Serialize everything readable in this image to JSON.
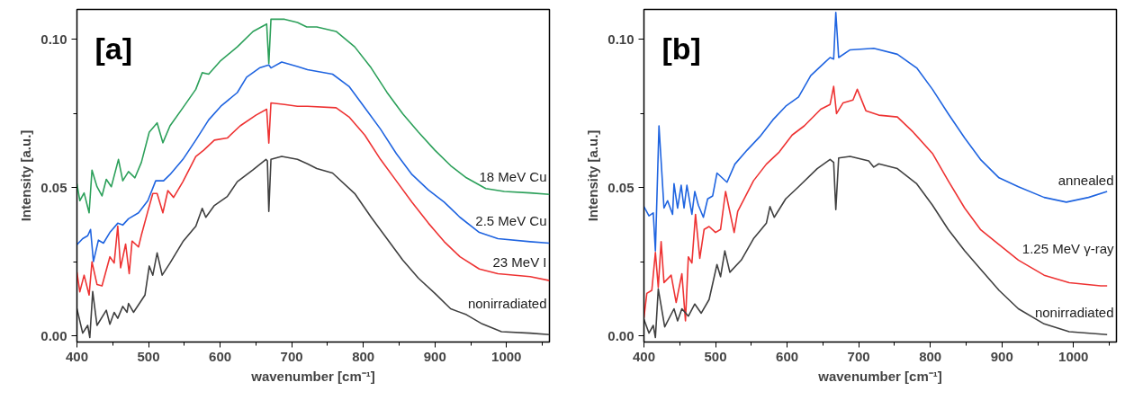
{
  "chart_data": [
    {
      "type": "line",
      "title": "[a]",
      "xlabel": "wavenumber [cm⁻¹]",
      "ylabel": "Intensity [a.u.]",
      "xlim": [
        400,
        1060
      ],
      "ylim": [
        -0.002,
        0.11
      ],
      "xticks": [
        400,
        {
          "value": 450,
          "label": null
        },
        500,
        {
          "value": 550,
          "label": null
        },
        600,
        {
          "value": 650,
          "label": null
        },
        700,
        {
          "value": 750,
          "label": null
        },
        800,
        {
          "value": 850,
          "label": null
        },
        900,
        {
          "value": 950,
          "label": null
        },
        1000,
        {
          "value": 1050,
          "label": null
        }
      ],
      "yticks": [
        {
          "value": 0,
          "label": "0.00"
        },
        {
          "value": 0.025,
          "label": null
        },
        {
          "value": 0.05,
          "label": "0.05"
        },
        {
          "value": 0.075,
          "label": null
        },
        {
          "value": 0.1,
          "label": "0.10"
        }
      ],
      "grid": false,
      "legend": false,
      "marker": "none",
      "line_style": "solid",
      "series": [
        {
          "name": "18 MeV Cu",
          "color": "#2ca05a",
          "x": [
            400,
            404,
            410,
            417,
            421,
            428,
            435,
            441,
            448,
            458,
            464,
            472,
            481,
            490,
            501,
            512,
            520,
            530,
            548,
            566,
            575,
            584,
            601,
            624,
            646,
            665,
            668,
            671,
            690,
            708,
            721,
            735,
            762,
            788,
            811,
            833,
            855,
            877,
            900,
            922,
            944,
            971,
            997,
            1033,
            1060
          ],
          "values": [
            0.0513,
            0.0456,
            0.0482,
            0.0415,
            0.0559,
            0.0503,
            0.0472,
            0.0528,
            0.0503,
            0.0595,
            0.0523,
            0.0554,
            0.0533,
            0.0585,
            0.0687,
            0.0718,
            0.0651,
            0.0708,
            0.0769,
            0.0831,
            0.0887,
            0.0882,
            0.0928,
            0.0974,
            0.1026,
            0.1051,
            0.0918,
            0.1067,
            0.1067,
            0.1056,
            0.1041,
            0.1041,
            0.1026,
            0.0974,
            0.0903,
            0.0821,
            0.0749,
            0.0687,
            0.0626,
            0.0574,
            0.0533,
            0.0497,
            0.0487,
            0.0482,
            0.0477
          ]
        },
        {
          "name": "2.5 MeV Cu",
          "color": "#1f64e0",
          "x": [
            400,
            408,
            415,
            419,
            423,
            430,
            437,
            446,
            457,
            464,
            472,
            486,
            499,
            510,
            521,
            530,
            548,
            566,
            584,
            601,
            624,
            637,
            655,
            668,
            671,
            686,
            708,
            722,
            757,
            780,
            802,
            824,
            846,
            868,
            891,
            913,
            935,
            962,
            988,
            1033,
            1060
          ],
          "values": [
            0.0308,
            0.0328,
            0.0338,
            0.0359,
            0.0251,
            0.0323,
            0.0313,
            0.0349,
            0.038,
            0.0374,
            0.0395,
            0.0415,
            0.0456,
            0.0523,
            0.0523,
            0.0544,
            0.0595,
            0.066,
            0.0728,
            0.0774,
            0.082,
            0.0872,
            0.0903,
            0.0913,
            0.0903,
            0.0923,
            0.0908,
            0.0897,
            0.0882,
            0.0841,
            0.0769,
            0.0697,
            0.0615,
            0.0544,
            0.0492,
            0.0451,
            0.04,
            0.0349,
            0.0328,
            0.0318,
            0.0313
          ]
        },
        {
          "name": "23 MeV I",
          "color": "#ee3333",
          "x": [
            400,
            404,
            410,
            417,
            421,
            428,
            435,
            446,
            452,
            457,
            461,
            468,
            473,
            477,
            486,
            490,
            499,
            506,
            512,
            520,
            527,
            535,
            548,
            566,
            577,
            592,
            610,
            628,
            650,
            665,
            668,
            671,
            690,
            708,
            722,
            762,
            780,
            802,
            824,
            846,
            868,
            891,
            913,
            935,
            962,
            988,
            1033,
            1060
          ],
          "values": [
            0.0215,
            0.0149,
            0.0205,
            0.0138,
            0.025,
            0.0174,
            0.0169,
            0.0267,
            0.0246,
            0.037,
            0.023,
            0.031,
            0.021,
            0.032,
            0.03,
            0.034,
            0.042,
            0.048,
            0.048,
            0.0415,
            0.049,
            0.0467,
            0.052,
            0.0605,
            0.0626,
            0.066,
            0.0667,
            0.0708,
            0.0744,
            0.0764,
            0.065,
            0.0785,
            0.078,
            0.0774,
            0.0774,
            0.0769,
            0.0738,
            0.0677,
            0.0595,
            0.0523,
            0.0451,
            0.038,
            0.0318,
            0.0267,
            0.0226,
            0.021,
            0.02,
            0.0187
          ]
        },
        {
          "name": "nonirradiated",
          "color": "#404040",
          "x": [
            400,
            408,
            415,
            418,
            422,
            428,
            441,
            446,
            452,
            457,
            464,
            470,
            472,
            479,
            495,
            501,
            506,
            512,
            519,
            530,
            548,
            566,
            575,
            580,
            592,
            610,
            624,
            646,
            664,
            666,
            668,
            671,
            686,
            708,
            722,
            735,
            757,
            788,
            811,
            833,
            855,
            877,
            900,
            922,
            944,
            966,
            993,
            1033,
            1060
          ],
          "values": [
            0.0092,
            0.001,
            0.0036,
            -0.0005,
            0.015,
            0.0036,
            0.0087,
            0.004,
            0.008,
            0.006,
            0.01,
            0.008,
            0.011,
            0.008,
            0.0138,
            0.0236,
            0.0205,
            0.028,
            0.0205,
            0.0246,
            0.0318,
            0.037,
            0.043,
            0.04,
            0.044,
            0.047,
            0.052,
            0.056,
            0.0595,
            0.059,
            0.042,
            0.0595,
            0.0605,
            0.0595,
            0.058,
            0.0564,
            0.0549,
            0.048,
            0.04,
            0.0328,
            0.0256,
            0.0195,
            0.0144,
            0.0092,
            0.0072,
            0.0041,
            0.0015,
            0.001,
            0.0005
          ]
        }
      ]
    },
    {
      "type": "line",
      "title": "[b]",
      "xlabel": "wavenumber [cm⁻¹]",
      "ylabel": "Intensity [a.u.]",
      "xlim": [
        400,
        1060
      ],
      "ylim": [
        -0.002,
        0.11
      ],
      "xticks": [
        400,
        {
          "value": 450,
          "label": null
        },
        500,
        {
          "value": 550,
          "label": null
        },
        600,
        {
          "value": 650,
          "label": null
        },
        700,
        {
          "value": 750,
          "label": null
        },
        800,
        {
          "value": 850,
          "label": null
        },
        900,
        {
          "value": 950,
          "label": null
        },
        1000,
        {
          "value": 1050,
          "label": null
        }
      ],
      "yticks": [
        {
          "value": 0,
          "label": "0.00"
        },
        {
          "value": 0.025,
          "label": null
        },
        {
          "value": 0.05,
          "label": "0.05"
        },
        {
          "value": 0.075,
          "label": null
        },
        {
          "value": 0.1,
          "label": "0.10"
        }
      ],
      "grid": false,
      "legend": false,
      "marker": "none",
      "line_style": "solid",
      "series": [
        {
          "name": "annealed",
          "color": "#1f64e0",
          "x": [
            400,
            407,
            413,
            416,
            421,
            428,
            433,
            440,
            442,
            447,
            452,
            456,
            460,
            467,
            471,
            476,
            483,
            489,
            496,
            502,
            516,
            527,
            544,
            562,
            580,
            598,
            616,
            633,
            651,
            660,
            665,
            668,
            672,
            688,
            721,
            754,
            781,
            803,
            825,
            848,
            870,
            896,
            923,
            959,
            990,
            1021,
            1047
          ],
          "values": [
            0.0436,
            0.0405,
            0.0415,
            0.0287,
            0.0708,
            0.0431,
            0.0456,
            0.041,
            0.0513,
            0.0431,
            0.0508,
            0.0431,
            0.0508,
            0.041,
            0.0487,
            0.0441,
            0.04,
            0.0462,
            0.0472,
            0.0549,
            0.0518,
            0.0579,
            0.0626,
            0.0672,
            0.0728,
            0.0774,
            0.0805,
            0.0877,
            0.0918,
            0.0938,
            0.0933,
            0.109,
            0.0938,
            0.0964,
            0.0969,
            0.0949,
            0.0903,
            0.0831,
            0.0749,
            0.0667,
            0.0595,
            0.0533,
            0.0503,
            0.0467,
            0.0451,
            0.0467,
            0.0487
          ]
        },
        {
          "name": "1.25 MeV γ-ray",
          "color": "#ee3333",
          "x": [
            400,
            404,
            411,
            416,
            420,
            424,
            428,
            438,
            445,
            453,
            458,
            462,
            467,
            472,
            478,
            484,
            491,
            500,
            507,
            514,
            526,
            531,
            553,
            571,
            589,
            607,
            624,
            647,
            660,
            665,
            669,
            678,
            692,
            698,
            710,
            728,
            754,
            776,
            803,
            825,
            848,
            870,
            896,
            923,
            959,
            994,
            1038,
            1047
          ],
          "values": [
            0.0062,
            0.0144,
            0.0154,
            0.0282,
            0.0164,
            0.0318,
            0.018,
            0.0205,
            0.0113,
            0.021,
            0.0051,
            0.0267,
            0.0246,
            0.041,
            0.0262,
            0.0359,
            0.0369,
            0.0349,
            0.0359,
            0.0487,
            0.0349,
            0.042,
            0.0523,
            0.0579,
            0.062,
            0.0677,
            0.0708,
            0.0764,
            0.078,
            0.0841,
            0.0749,
            0.0785,
            0.0795,
            0.0831,
            0.0759,
            0.0744,
            0.0738,
            0.0687,
            0.0615,
            0.0523,
            0.0431,
            0.0359,
            0.0308,
            0.0256,
            0.0205,
            0.018,
            0.0169,
            0.0169
          ]
        },
        {
          "name": "nonirradiated",
          "color": "#404040",
          "x": [
            400,
            407,
            413,
            416,
            420,
            429,
            442,
            447,
            453,
            462,
            471,
            480,
            491,
            502,
            507,
            513,
            520,
            536,
            553,
            571,
            576,
            582,
            598,
            616,
            642,
            660,
            665,
            668,
            672,
            688,
            714,
            721,
            728,
            754,
            781,
            803,
            825,
            848,
            870,
            896,
            923,
            959,
            994,
            1047
          ],
          "values": [
            0.0056,
            0.001,
            0.0036,
            -0.0005,
            0.0159,
            0.0031,
            0.0092,
            0.0051,
            0.0092,
            0.0067,
            0.0108,
            0.0077,
            0.0123,
            0.0241,
            0.02,
            0.0287,
            0.0215,
            0.0256,
            0.0328,
            0.038,
            0.0436,
            0.04,
            0.0462,
            0.0503,
            0.0564,
            0.0595,
            0.0585,
            0.0426,
            0.06,
            0.0605,
            0.059,
            0.0569,
            0.058,
            0.0564,
            0.0513,
            0.0441,
            0.0359,
            0.0287,
            0.0226,
            0.0154,
            0.0092,
            0.0041,
            0.0015,
            0.0005
          ]
        }
      ]
    }
  ]
}
